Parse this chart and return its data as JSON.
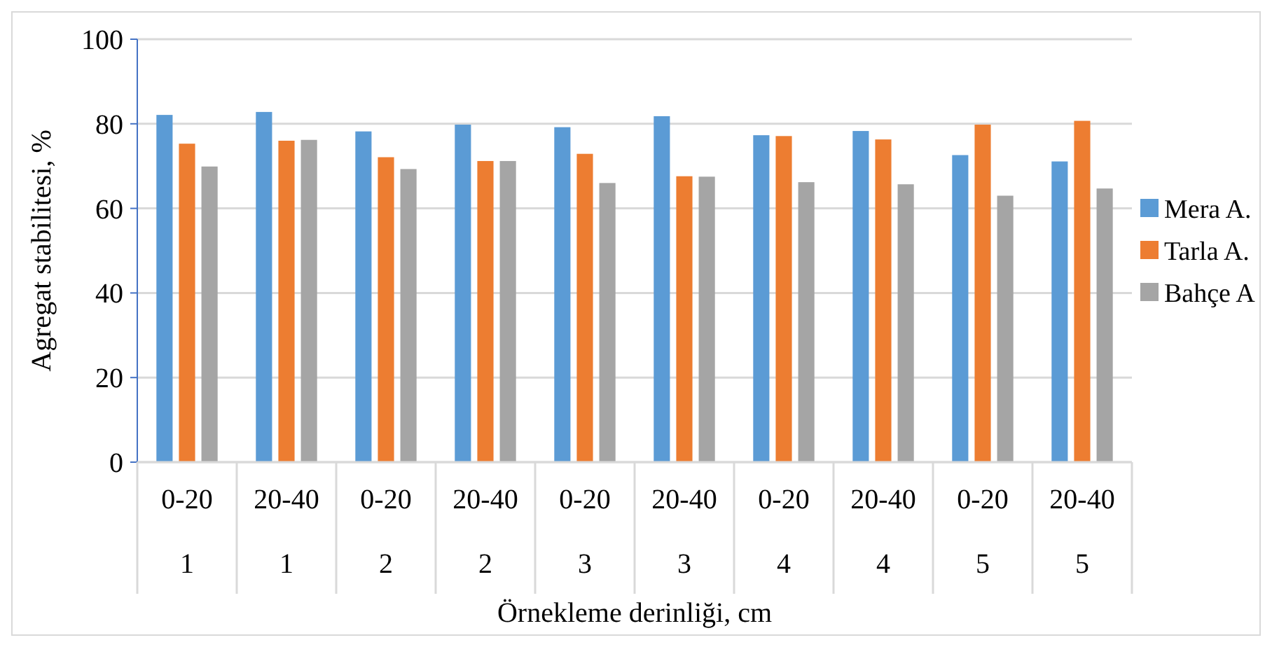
{
  "chart_data": {
    "type": "bar",
    "xlabel": "Örnekleme derinliği, cm",
    "ylabel": "Agregat stabilitesi, %",
    "categories": [
      "0-20\n1",
      "20-40\n1",
      "0-20\n2",
      "20-40\n2",
      "0-20\n3",
      "20-40\n3",
      "0-20\n4",
      "20-40\n4",
      "0-20\n5",
      "20-40\n5"
    ],
    "series": [
      {
        "name": "Mera A.",
        "color": "#5b9bd5",
        "values": [
          82.1,
          82.8,
          78.2,
          79.8,
          79.2,
          81.8,
          77.3,
          78.3,
          72.6,
          71.1
        ]
      },
      {
        "name": "Tarla A.",
        "color": "#ed7d31",
        "values": [
          75.3,
          76.0,
          72.1,
          71.2,
          72.9,
          67.6,
          77.1,
          76.3,
          79.8,
          80.7
        ]
      },
      {
        "name": "Bahçe A",
        "color": "#a5a5a5",
        "values": [
          69.9,
          76.2,
          69.3,
          71.2,
          66.0,
          67.5,
          66.2,
          65.7,
          63.0,
          64.7
        ]
      }
    ],
    "ylim": [
      0,
      100
    ],
    "yticks": [
      0,
      20,
      40,
      60,
      80,
      100
    ],
    "grid": "y",
    "legend": "right"
  }
}
